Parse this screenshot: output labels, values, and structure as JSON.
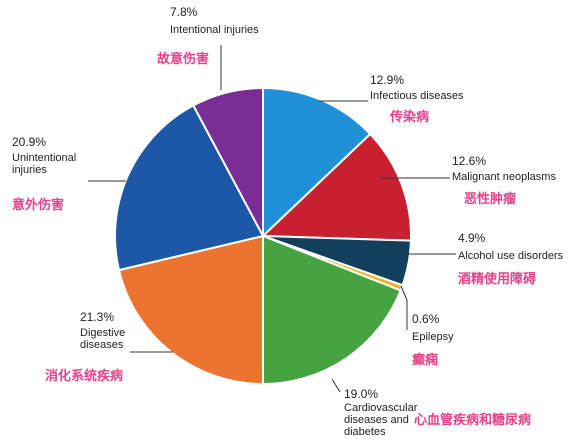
{
  "chart_data": {
    "type": "pie",
    "label_color": "#e8418b",
    "slices": [
      {
        "value": 12.9,
        "pct_label": "12.9%",
        "en": [
          "Infectious diseases"
        ],
        "zh": "传染病",
        "color": "#1f8fd8"
      },
      {
        "value": 12.6,
        "pct_label": "12.6%",
        "en": [
          "Malignant neoplasms"
        ],
        "zh": "恶性肿瘤",
        "color": "#c8202e"
      },
      {
        "value": 4.9,
        "pct_label": "4.9%",
        "en": [
          "Alcohol use disorders"
        ],
        "zh": "酒精使用障碍",
        "color": "#123f5c"
      },
      {
        "value": 0.6,
        "pct_label": "0.6%",
        "en": [
          "Epilepsy"
        ],
        "zh": "癫痫",
        "color": "#f4b120"
      },
      {
        "value": 19.0,
        "pct_label": "19.0%",
        "en": [
          "Cardiovascular",
          "diseases and",
          "diabetes"
        ],
        "zh": "心血管疾病和糖尿病",
        "color": "#46a342"
      },
      {
        "value": 21.3,
        "pct_label": "21.3%",
        "en": [
          "Digestive",
          "diseases"
        ],
        "zh": "消化系统疾病",
        "color": "#ec7330"
      },
      {
        "value": 20.9,
        "pct_label": "20.9%",
        "en": [
          "Unintentional",
          "injuries"
        ],
        "zh": "意外伤害",
        "color": "#1d58a6"
      },
      {
        "value": 7.8,
        "pct_label": "7.8%",
        "en": [
          "Intentional injuries"
        ],
        "zh": "故意伤害",
        "color": "#7a2d94"
      }
    ]
  }
}
